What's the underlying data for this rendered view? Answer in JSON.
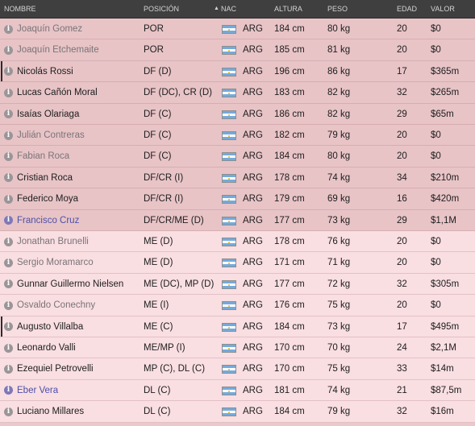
{
  "columns": {
    "nombre": "NOMBRE",
    "posicion": "POSICIÓN",
    "nac": "NAC",
    "altura": "ALTURA",
    "peso": "PESO",
    "edad": "EDAD",
    "valor": "VALOR"
  },
  "players": [
    {
      "name": "Joaquín Gomez",
      "position": "POR",
      "nationality": "ARG",
      "height": "184 cm",
      "weight": "80 kg",
      "age": "20",
      "value": "$0"
    },
    {
      "name": "Joaquín Etchemaite",
      "position": "POR",
      "nationality": "ARG",
      "height": "185 cm",
      "weight": "81 kg",
      "age": "20",
      "value": "$0"
    },
    {
      "name": "Nicolás Rossi",
      "position": "DF (D)",
      "nationality": "ARG",
      "height": "196 cm",
      "weight": "86 kg",
      "age": "17",
      "value": "$365m"
    },
    {
      "name": "Lucas Cañón Moral",
      "position": "DF (DC), CR (D)",
      "nationality": "ARG",
      "height": "183 cm",
      "weight": "82 kg",
      "age": "32",
      "value": "$265m"
    },
    {
      "name": "Isaías Olariaga",
      "position": "DF (C)",
      "nationality": "ARG",
      "height": "186 cm",
      "weight": "82 kg",
      "age": "29",
      "value": "$65m"
    },
    {
      "name": "Julián Contreras",
      "position": "DF (C)",
      "nationality": "ARG",
      "height": "182 cm",
      "weight": "79 kg",
      "age": "20",
      "value": "$0"
    },
    {
      "name": "Fabian Roca",
      "position": "DF (C)",
      "nationality": "ARG",
      "height": "184 cm",
      "weight": "80 kg",
      "age": "20",
      "value": "$0"
    },
    {
      "name": "Cristian Roca",
      "position": "DF/CR (I)",
      "nationality": "ARG",
      "height": "178 cm",
      "weight": "74 kg",
      "age": "34",
      "value": "$210m"
    },
    {
      "name": "Federico Moya",
      "position": "DF/CR (I)",
      "nationality": "ARG",
      "height": "179 cm",
      "weight": "69 kg",
      "age": "16",
      "value": "$420m"
    },
    {
      "name": "Francisco Cruz",
      "position": "DF/CR/ME (D)",
      "nationality": "ARG",
      "height": "177 cm",
      "weight": "73 kg",
      "age": "29",
      "value": "$1,1M"
    },
    {
      "name": "Jonathan Brunelli",
      "position": "ME (D)",
      "nationality": "ARG",
      "height": "178 cm",
      "weight": "76 kg",
      "age": "20",
      "value": "$0"
    },
    {
      "name": "Sergio Moramarco",
      "position": "ME (D)",
      "nationality": "ARG",
      "height": "171 cm",
      "weight": "71 kg",
      "age": "20",
      "value": "$0"
    },
    {
      "name": "Gunnar Guillermo Nielsen",
      "position": "ME (DC), MP (D)",
      "nationality": "ARG",
      "height": "177 cm",
      "weight": "72 kg",
      "age": "32",
      "value": "$305m"
    },
    {
      "name": "Osvaldo Conechny",
      "position": "ME (I)",
      "nationality": "ARG",
      "height": "176 cm",
      "weight": "75 kg",
      "age": "20",
      "value": "$0"
    },
    {
      "name": "Augusto Villalba",
      "position": "ME (C)",
      "nationality": "ARG",
      "height": "184 cm",
      "weight": "73 kg",
      "age": "17",
      "value": "$495m"
    },
    {
      "name": "Leonardo Valli",
      "position": "ME/MP (I)",
      "nationality": "ARG",
      "height": "170 cm",
      "weight": "70 kg",
      "age": "24",
      "value": "$2,1M"
    },
    {
      "name": "Ezequiel Petrovelli",
      "position": "MP (C), DL (C)",
      "nationality": "ARG",
      "height": "170 cm",
      "weight": "75 kg",
      "age": "33",
      "value": "$14m"
    },
    {
      "name": "Eber Vera",
      "position": "DL (C)",
      "nationality": "ARG",
      "height": "181 cm",
      "weight": "74 kg",
      "age": "21",
      "value": "$87,5m"
    },
    {
      "name": "Luciano Millares",
      "position": "DL (C)",
      "nationality": "ARG",
      "height": "184 cm",
      "weight": "79 kg",
      "age": "32",
      "value": "$16m"
    }
  ],
  "colors": {
    "header_bg": "#3f3f3f",
    "row_dark": "#e8c4c7",
    "row_light": "#f9dee2",
    "muted_name": "#7a7477",
    "link_name": "#4d4fa7"
  },
  "icons": {
    "info": "info-circle-icon",
    "flag": "argentina-flag-icon",
    "sort": "sort-chevron-icon"
  }
}
